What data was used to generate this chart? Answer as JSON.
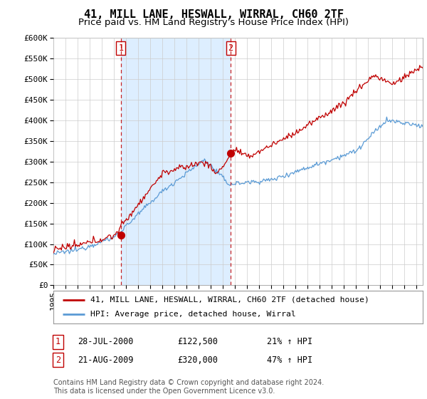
{
  "title": "41, MILL LANE, HESWALL, WIRRAL, CH60 2TF",
  "subtitle": "Price paid vs. HM Land Registry's House Price Index (HPI)",
  "ylim": [
    0,
    600000
  ],
  "yticks": [
    0,
    50000,
    100000,
    150000,
    200000,
    250000,
    300000,
    350000,
    400000,
    450000,
    500000,
    550000,
    600000
  ],
  "ytick_labels": [
    "£0",
    "£50K",
    "£100K",
    "£150K",
    "£200K",
    "£250K",
    "£300K",
    "£350K",
    "£400K",
    "£450K",
    "£500K",
    "£550K",
    "£600K"
  ],
  "hpi_color": "#5b9bd5",
  "price_color": "#c00000",
  "marker_color": "#c00000",
  "vline_color": "#c00000",
  "shade_color": "#ddeeff",
  "background_color": "#ffffff",
  "grid_color": "#cccccc",
  "transaction1": {
    "date_num": 2000.57,
    "price": 122500,
    "label": "1"
  },
  "transaction2": {
    "date_num": 2009.64,
    "price": 320000,
    "label": "2"
  },
  "legend_entry1": "41, MILL LANE, HESWALL, WIRRAL, CH60 2TF (detached house)",
  "legend_entry2": "HPI: Average price, detached house, Wirral",
  "table_row1": [
    "1",
    "28-JUL-2000",
    "£122,500",
    "21% ↑ HPI"
  ],
  "table_row2": [
    "2",
    "21-AUG-2009",
    "£320,000",
    "47% ↑ HPI"
  ],
  "footer": "Contains HM Land Registry data © Crown copyright and database right 2024.\nThis data is licensed under the Open Government Licence v3.0.",
  "title_fontsize": 11,
  "subtitle_fontsize": 9.5,
  "tick_fontsize": 8,
  "xstart": 1995.0,
  "xend": 2025.5
}
